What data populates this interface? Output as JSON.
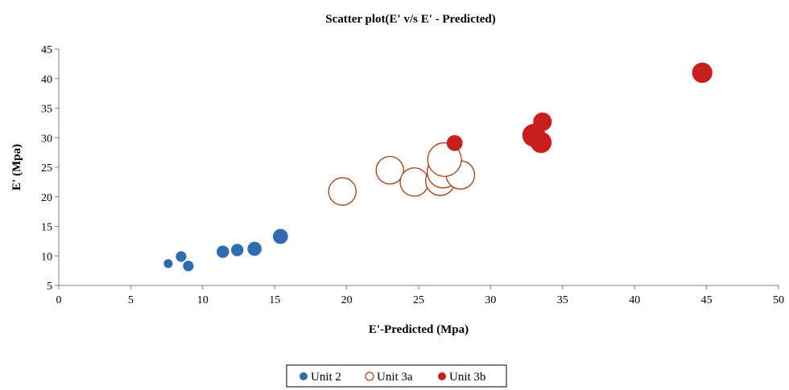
{
  "chart_data": {
    "type": "scatter",
    "title": "Scatter plot(E' v/s E' - Predicted)",
    "xlabel": "E'-Predicted (Mpa)",
    "ylabel": "E' (Mpa)",
    "xlim": [
      0,
      50
    ],
    "ylim": [
      5,
      45
    ],
    "xticks": [
      "0",
      "5",
      "10",
      "15",
      "20",
      "25",
      "30",
      "35",
      "40",
      "45",
      "50"
    ],
    "yticks": [
      "5",
      "10",
      "15",
      "20",
      "25",
      "30",
      "35",
      "40",
      "45"
    ],
    "grid": false,
    "legend_position": "bottom",
    "series": [
      {
        "name": "Unit 2",
        "color": "#2e6bb0",
        "marker": "filled-circle",
        "points": [
          {
            "x": 7.6,
            "y": 8.7,
            "size": 1.0
          },
          {
            "x": 8.5,
            "y": 9.9,
            "size": 1.2
          },
          {
            "x": 9.0,
            "y": 8.3,
            "size": 1.2
          },
          {
            "x": 11.4,
            "y": 10.7,
            "size": 1.4
          },
          {
            "x": 12.4,
            "y": 11.0,
            "size": 1.4
          },
          {
            "x": 13.6,
            "y": 11.2,
            "size": 1.6
          },
          {
            "x": 15.4,
            "y": 13.3,
            "size": 1.7
          }
        ]
      },
      {
        "name": "Unit 3a",
        "color": "#a33d12",
        "marker": "hollow-circle",
        "points": [
          {
            "x": 19.7,
            "y": 20.9,
            "size": 3.1
          },
          {
            "x": 23.0,
            "y": 24.5,
            "size": 3.1
          },
          {
            "x": 24.7,
            "y": 22.5,
            "size": 3.2
          },
          {
            "x": 26.5,
            "y": 22.7,
            "size": 3.3
          },
          {
            "x": 26.7,
            "y": 24.2,
            "size": 3.6
          },
          {
            "x": 27.9,
            "y": 23.7,
            "size": 3.2
          },
          {
            "x": 26.8,
            "y": 26.3,
            "size": 3.8
          }
        ]
      },
      {
        "name": "Unit 3b",
        "color": "#c81e1e",
        "marker": "filled-circle",
        "points": [
          {
            "x": 27.5,
            "y": 29.1,
            "size": 1.8
          },
          {
            "x": 33.0,
            "y": 30.4,
            "size": 2.6
          },
          {
            "x": 33.5,
            "y": 29.2,
            "size": 2.4
          },
          {
            "x": 33.6,
            "y": 32.7,
            "size": 2.1
          },
          {
            "x": 44.7,
            "y": 41.0,
            "size": 2.3
          }
        ]
      }
    ]
  }
}
